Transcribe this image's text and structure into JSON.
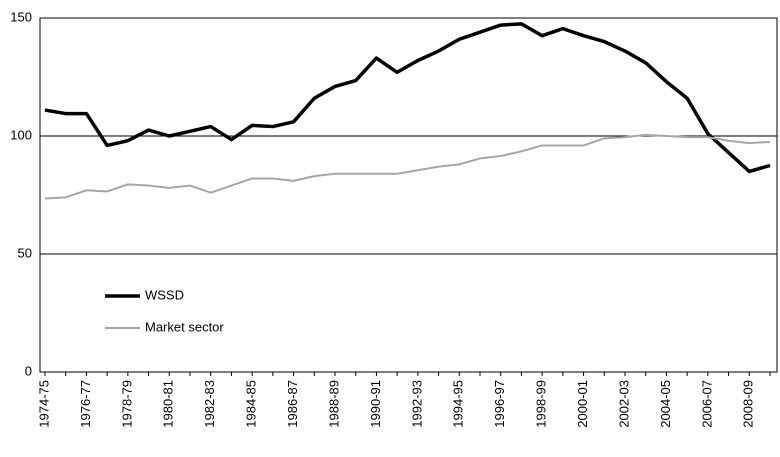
{
  "chart_data": {
    "type": "line",
    "categories": [
      "1974-75",
      null,
      "1976-77",
      null,
      "1978-79",
      null,
      "1980-81",
      null,
      "1982-83",
      null,
      "1984-85",
      null,
      "1986-87",
      null,
      "1988-89",
      null,
      "1990-91",
      null,
      "1992-93",
      null,
      "1994-95",
      null,
      "1996-97",
      null,
      "1998-99",
      null,
      "2000-01",
      null,
      "2002-03",
      null,
      "2004-05",
      null,
      "2006-07",
      null,
      "2008-09",
      null
    ],
    "series": [
      {
        "name": "WSSD",
        "color": "#000000",
        "values": [
          111,
          109.5,
          109.5,
          96,
          98,
          102.5,
          100,
          102,
          104,
          98.5,
          104.5,
          104,
          106,
          116,
          121,
          123.5,
          133,
          127,
          132,
          136,
          141,
          144,
          147,
          147.5,
          142.5,
          145.5,
          142.5,
          140,
          136,
          131,
          123,
          116,
          101,
          93,
          85,
          87.5
        ]
      },
      {
        "name": "Market sector",
        "color": "#a6a6a6",
        "values": [
          73.5,
          74,
          77,
          76.5,
          79.5,
          79,
          78,
          79,
          76,
          79,
          82,
          82,
          81,
          83,
          84,
          84,
          84,
          84,
          85.5,
          87,
          88,
          90.5,
          91.5,
          93.5,
          96,
          96,
          96,
          99,
          99.5,
          100.5,
          100,
          99.5,
          99.5,
          98,
          97,
          97.5
        ]
      }
    ],
    "ylim": [
      0,
      150
    ],
    "yticks": [
      0,
      50,
      100,
      150
    ],
    "grid": true,
    "legend": "lower left"
  }
}
